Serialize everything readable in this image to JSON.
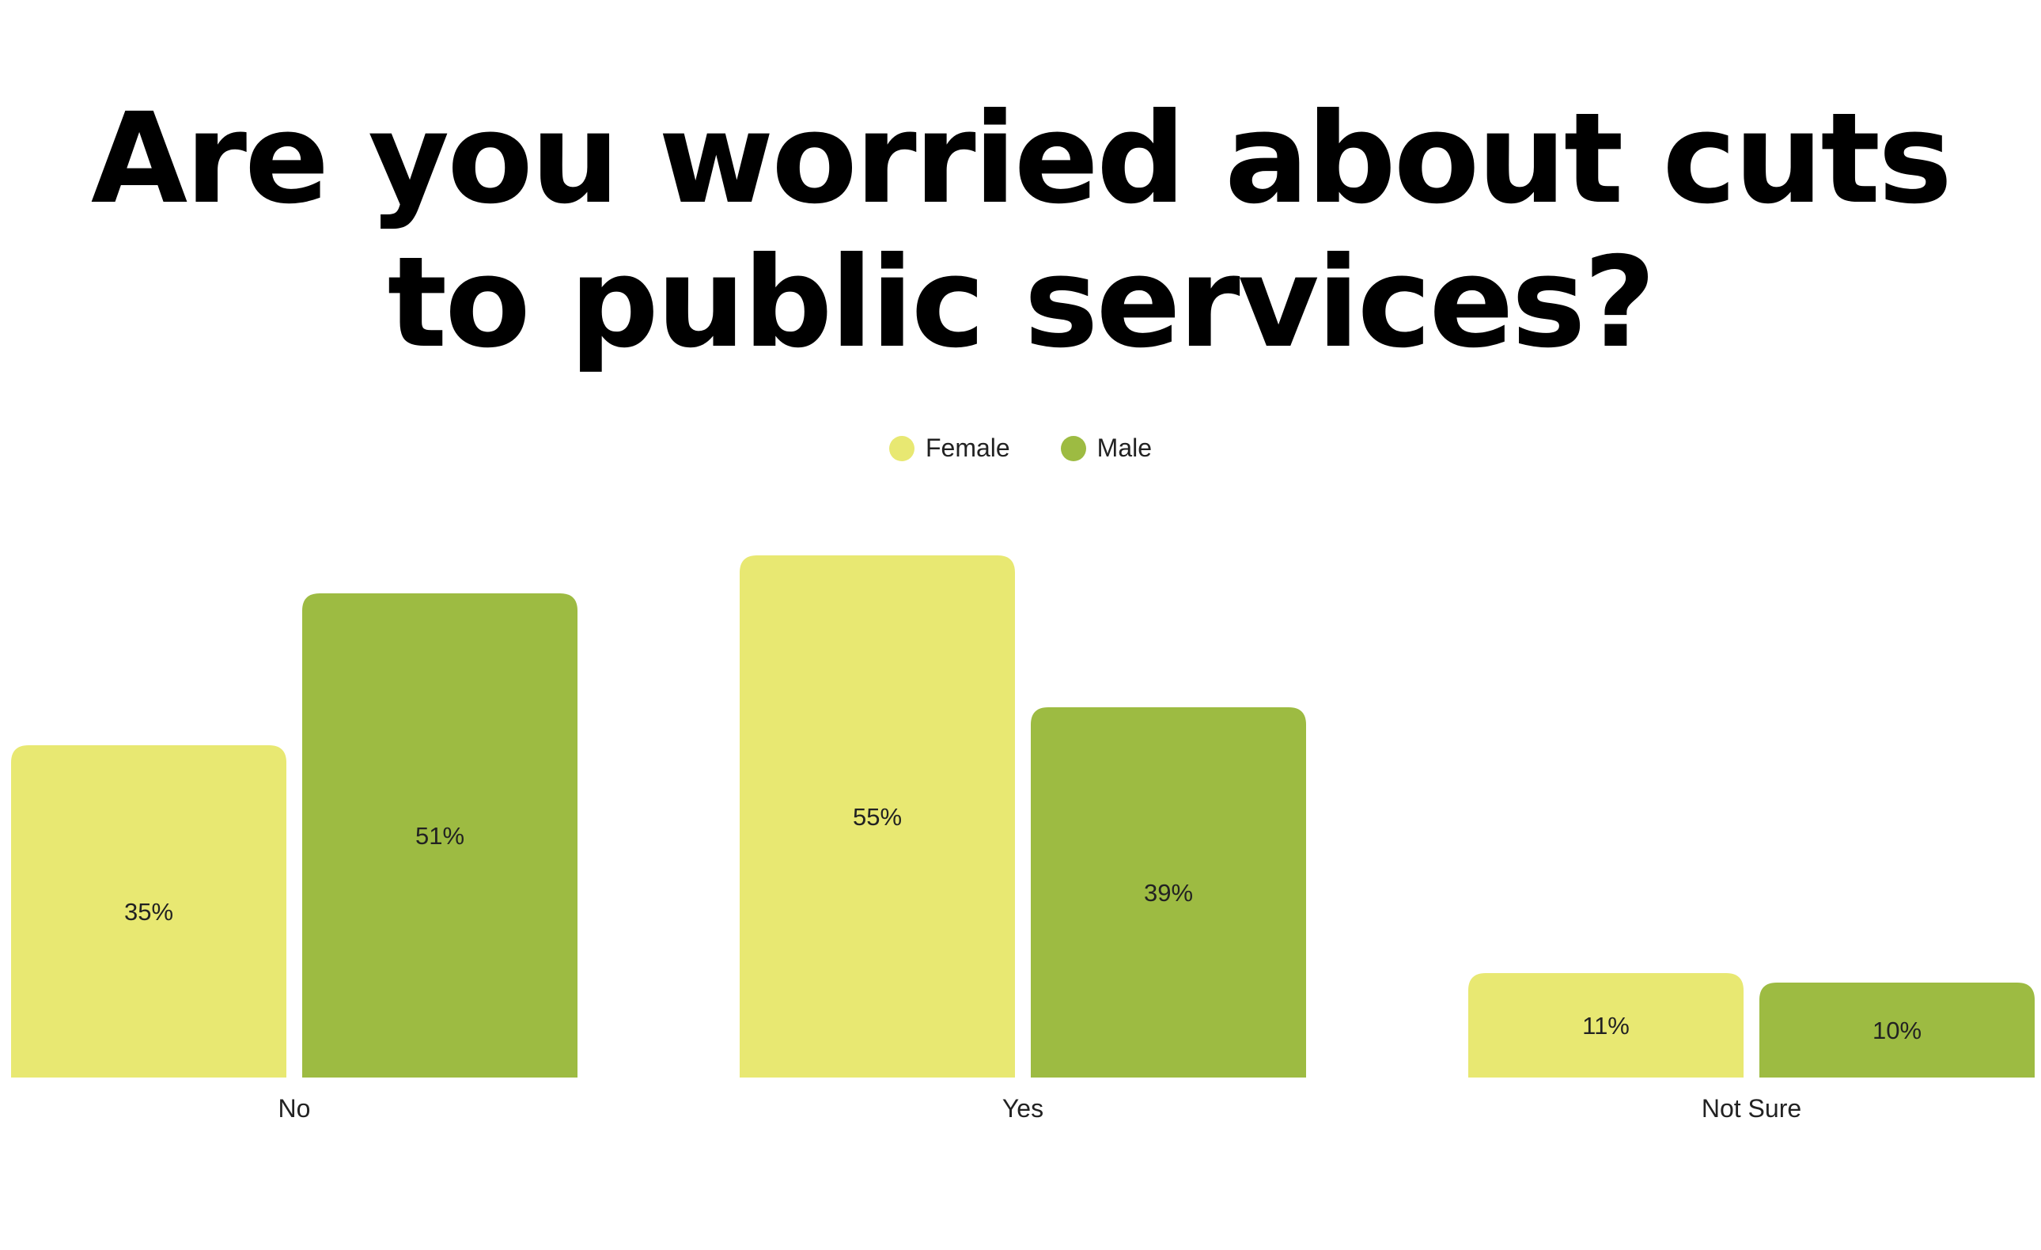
{
  "chart_data": {
    "type": "bar",
    "title": "Are you worried about cuts to public services?",
    "title_lines": [
      "Are you worried about cuts",
      "to public services?"
    ],
    "categories": [
      "No",
      "Yes",
      "Not Sure"
    ],
    "series": [
      {
        "name": "Female",
        "color": "#e8e872",
        "values": [
          35,
          55,
          11
        ],
        "labels": [
          "35%",
          "55%",
          "11%"
        ]
      },
      {
        "name": "Male",
        "color": "#9dbb42",
        "values": [
          51,
          39,
          10
        ],
        "labels": [
          "51%",
          "39%",
          "10%"
        ]
      }
    ],
    "ylim": [
      0,
      100
    ],
    "legend_position": "top-center",
    "grid": false,
    "xlabel": "",
    "ylabel": ""
  }
}
